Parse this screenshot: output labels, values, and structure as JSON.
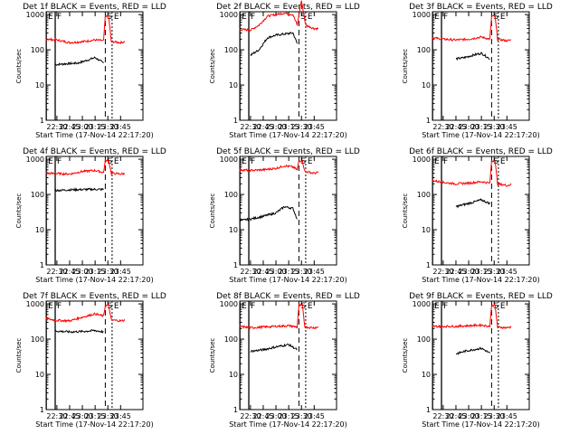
{
  "figure": {
    "xaxis_label": "Start Time (17-Nov-14 22:17:20)",
    "yaxis_label": "Counts/sec",
    "x_ticks": [
      "22:30",
      "22:45",
      "23:00",
      "23:15",
      "23:30",
      "23:45"
    ],
    "y_ticks": [
      "1",
      "10",
      "100",
      "1000"
    ],
    "colors": {
      "events": "#000000",
      "lld": "#ff0000",
      "axes": "#000000",
      "background": "#ffffff"
    }
  },
  "chart_data": [
    {
      "type": "line",
      "title": "Det 1f BLACK = Events, RED = LLD",
      "xlabel": "Start Time (17-Nov-14 22:17:20)",
      "ylabel": "Counts/sec",
      "xlim": [
        "22:17:20",
        "23:55"
      ],
      "ylim": [
        1,
        1200
      ],
      "yscale": "log",
      "markers": [
        {
          "label": "E",
          "time": "22:17:30",
          "style": "solid"
        },
        {
          "label": "F",
          "time": "22:28",
          "style": "solid"
        },
        {
          "label": "S",
          "time": "23:27",
          "style": "dashed"
        },
        {
          "label": "E",
          "time": "23:35",
          "style": "dotted"
        }
      ],
      "series": [
        {
          "name": "Events",
          "color": "#000000",
          "x": [
            "22:28",
            "22:40",
            "22:55",
            "23:05",
            "23:15",
            "23:25"
          ],
          "values": [
            38,
            40,
            42,
            50,
            60,
            42
          ]
        },
        {
          "name": "LLD",
          "color": "#ff0000",
          "x": [
            "22:17",
            "22:30",
            "22:45",
            "23:00",
            "23:15",
            "23:25",
            "23:27",
            "23:31",
            "23:34",
            "23:45",
            "23:50"
          ],
          "values": [
            200,
            190,
            160,
            170,
            190,
            180,
            900,
            900,
            170,
            160,
            170
          ]
        }
      ]
    },
    {
      "type": "line",
      "title": "Det 2f BLACK = Events, RED = LLD",
      "xlabel": "Start Time (17-Nov-14 22:17:20)",
      "ylabel": "Counts/sec",
      "xlim": [
        "22:17:20",
        "23:55"
      ],
      "ylim": [
        1,
        1200
      ],
      "yscale": "log",
      "markers": [
        {
          "label": "E",
          "time": "22:17:30",
          "style": "solid"
        },
        {
          "label": "F",
          "time": "22:28",
          "style": "solid"
        },
        {
          "label": "S",
          "time": "23:27",
          "style": "dashed"
        },
        {
          "label": "E",
          "time": "23:35",
          "style": "dotted"
        }
      ],
      "series": [
        {
          "name": "Events",
          "color": "#000000",
          "x": [
            "22:30",
            "22:40",
            "22:50",
            "23:00",
            "23:10",
            "23:20",
            "23:25"
          ],
          "values": [
            70,
            100,
            220,
            260,
            280,
            300,
            150
          ]
        },
        {
          "name": "LLD",
          "color": "#ff0000",
          "x": [
            "22:17",
            "22:30",
            "22:40",
            "22:50",
            "23:00",
            "23:10",
            "23:20",
            "23:25",
            "23:30",
            "23:35",
            "23:45",
            "23:50"
          ],
          "values": [
            380,
            360,
            500,
            900,
            1000,
            1100,
            1000,
            500,
            2500,
            500,
            400,
            400
          ]
        }
      ]
    },
    {
      "type": "line",
      "title": "Det 3f BLACK = Events, RED = LLD",
      "xlabel": "Start Time (17-Nov-14 22:17:20)",
      "ylabel": "Counts/sec",
      "xlim": [
        "22:17:20",
        "23:55"
      ],
      "ylim": [
        1,
        1200
      ],
      "yscale": "log",
      "markers": [
        {
          "label": "E",
          "time": "22:17:30",
          "style": "solid"
        },
        {
          "label": "F",
          "time": "22:28",
          "style": "solid"
        },
        {
          "label": "S",
          "time": "23:27",
          "style": "dashed"
        },
        {
          "label": "E",
          "time": "23:35",
          "style": "dotted"
        }
      ],
      "series": [
        {
          "name": "Events",
          "color": "#000000",
          "x": [
            "22:45",
            "22:55",
            "23:05",
            "23:15",
            "23:25"
          ],
          "values": [
            55,
            60,
            70,
            80,
            55
          ]
        },
        {
          "name": "LLD",
          "color": "#ff0000",
          "x": [
            "22:17",
            "22:30",
            "22:45",
            "23:00",
            "23:15",
            "23:25",
            "23:27",
            "23:31",
            "23:34",
            "23:45",
            "23:50"
          ],
          "values": [
            220,
            200,
            190,
            200,
            230,
            200,
            900,
            900,
            200,
            180,
            190
          ]
        }
      ]
    },
    {
      "type": "line",
      "title": "Det 4f BLACK = Events, RED = LLD",
      "xlabel": "Start Time (17-Nov-14 22:17:20)",
      "ylabel": "Counts/sec",
      "xlim": [
        "22:17:20",
        "23:55"
      ],
      "ylim": [
        1,
        1200
      ],
      "yscale": "log",
      "markers": [
        {
          "label": "E",
          "time": "22:17:30",
          "style": "solid"
        },
        {
          "label": "F",
          "time": "22:28",
          "style": "solid"
        },
        {
          "label": "S",
          "time": "23:27",
          "style": "dashed"
        },
        {
          "label": "E",
          "time": "23:35",
          "style": "dotted"
        }
      ],
      "series": [
        {
          "name": "Events",
          "color": "#000000",
          "x": [
            "22:28",
            "22:45",
            "23:00",
            "23:15",
            "23:25"
          ],
          "values": [
            130,
            135,
            138,
            140,
            138
          ]
        },
        {
          "name": "LLD",
          "color": "#ff0000",
          "x": [
            "22:17",
            "22:30",
            "22:45",
            "23:00",
            "23:15",
            "23:25",
            "23:27",
            "23:31",
            "23:34",
            "23:45",
            "23:50"
          ],
          "values": [
            400,
            390,
            380,
            450,
            480,
            420,
            900,
            900,
            400,
            380,
            390
          ]
        }
      ]
    },
    {
      "type": "line",
      "title": "Det 5f BLACK = Events, RED = LLD",
      "xlabel": "Start Time (17-Nov-14 22:17:20)",
      "ylabel": "Counts/sec",
      "xlim": [
        "22:17:20",
        "23:55"
      ],
      "ylim": [
        1,
        1200
      ],
      "yscale": "log",
      "markers": [
        {
          "label": "E",
          "time": "22:17:30",
          "style": "solid"
        },
        {
          "label": "F",
          "time": "22:28",
          "style": "solid"
        },
        {
          "label": "S",
          "time": "23:27",
          "style": "dashed"
        },
        {
          "label": "E",
          "time": "23:35",
          "style": "dotted"
        }
      ],
      "series": [
        {
          "name": "Events",
          "color": "#000000",
          "x": [
            "22:17",
            "22:30",
            "22:45",
            "23:00",
            "23:10",
            "23:20",
            "23:25"
          ],
          "values": [
            18,
            20,
            24,
            30,
            45,
            40,
            20
          ]
        },
        {
          "name": "LLD",
          "color": "#ff0000",
          "x": [
            "22:17",
            "22:30",
            "22:45",
            "23:00",
            "23:10",
            "23:20",
            "23:25",
            "23:27",
            "23:31",
            "23:34",
            "23:45",
            "23:50"
          ],
          "values": [
            500,
            480,
            500,
            550,
            650,
            600,
            500,
            900,
            900,
            450,
            400,
            420
          ]
        }
      ]
    },
    {
      "type": "line",
      "title": "Det 6f BLACK = Events, RED = LLD",
      "xlabel": "Start Time (17-Nov-14 22:17:20)",
      "ylabel": "Counts/sec",
      "xlim": [
        "22:17:20",
        "23:55"
      ],
      "ylim": [
        1,
        1200
      ],
      "yscale": "log",
      "markers": [
        {
          "label": "E",
          "time": "22:17:30",
          "style": "solid"
        },
        {
          "label": "F",
          "time": "22:28",
          "style": "solid"
        },
        {
          "label": "S",
          "time": "23:27",
          "style": "dashed"
        },
        {
          "label": "E",
          "time": "23:35",
          "style": "dotted"
        }
      ],
      "series": [
        {
          "name": "Events",
          "color": "#000000",
          "x": [
            "22:45",
            "22:55",
            "23:05",
            "23:15",
            "23:25"
          ],
          "values": [
            45,
            52,
            60,
            70,
            55
          ]
        },
        {
          "name": "LLD",
          "color": "#ff0000",
          "x": [
            "22:17",
            "22:30",
            "22:45",
            "23:00",
            "23:15",
            "23:25",
            "23:27",
            "23:31",
            "23:34",
            "23:45",
            "23:50"
          ],
          "values": [
            250,
            220,
            200,
            210,
            230,
            210,
            900,
            900,
            200,
            180,
            190
          ]
        }
      ]
    },
    {
      "type": "line",
      "title": "Det 7f BLACK = Events, RED = LLD",
      "xlabel": "Start Time (17-Nov-14 22:17:20)",
      "ylabel": "Counts/sec",
      "xlim": [
        "22:17:20",
        "23:55"
      ],
      "ylim": [
        1,
        1200
      ],
      "yscale": "log",
      "markers": [
        {
          "label": "E",
          "time": "22:17:30",
          "style": "solid"
        },
        {
          "label": "F",
          "time": "22:28",
          "style": "solid"
        },
        {
          "label": "S",
          "time": "23:27",
          "style": "dashed"
        },
        {
          "label": "E",
          "time": "23:35",
          "style": "dotted"
        }
      ],
      "series": [
        {
          "name": "Events",
          "color": "#000000",
          "x": [
            "22:28",
            "22:45",
            "23:00",
            "23:15",
            "23:25"
          ],
          "values": [
            170,
            160,
            165,
            175,
            160
          ]
        },
        {
          "name": "LLD",
          "color": "#ff0000",
          "x": [
            "22:17",
            "22:30",
            "22:45",
            "23:00",
            "23:15",
            "23:25",
            "23:27",
            "23:31",
            "23:34",
            "23:45",
            "23:50"
          ],
          "values": [
            380,
            340,
            330,
            420,
            520,
            450,
            900,
            900,
            350,
            330,
            340
          ]
        }
      ]
    },
    {
      "type": "line",
      "title": "Det 8f BLACK = Events, RED = LLD",
      "xlabel": "Start Time (17-Nov-14 22:17:20)",
      "ylabel": "Counts/sec",
      "xlim": [
        "22:17:20",
        "23:55"
      ],
      "ylim": [
        1,
        1200
      ],
      "yscale": "log",
      "markers": [
        {
          "label": "E",
          "time": "22:17:30",
          "style": "solid"
        },
        {
          "label": "F",
          "time": "22:28",
          "style": "solid"
        },
        {
          "label": "S",
          "time": "23:27",
          "style": "dashed"
        },
        {
          "label": "E",
          "time": "23:35",
          "style": "dotted"
        }
      ],
      "series": [
        {
          "name": "Events",
          "color": "#000000",
          "x": [
            "22:30",
            "22:45",
            "23:00",
            "23:15",
            "23:25"
          ],
          "values": [
            45,
            50,
            60,
            70,
            50
          ]
        },
        {
          "name": "LLD",
          "color": "#ff0000",
          "x": [
            "22:17",
            "22:30",
            "22:45",
            "23:00",
            "23:15",
            "23:25",
            "23:27",
            "23:31",
            "23:34",
            "23:45",
            "23:50"
          ],
          "values": [
            230,
            210,
            220,
            230,
            240,
            220,
            900,
            900,
            220,
            210,
            220
          ]
        }
      ]
    },
    {
      "type": "line",
      "title": "Det 9f BLACK = Events, RED = LLD",
      "xlabel": "Start Time (17-Nov-14 22:17:20)",
      "ylabel": "Counts/sec",
      "xlim": [
        "22:17:20",
        "23:55"
      ],
      "ylim": [
        1,
        1200
      ],
      "yscale": "log",
      "markers": [
        {
          "label": "E",
          "time": "22:17:30",
          "style": "solid"
        },
        {
          "label": "F",
          "time": "22:28",
          "style": "solid"
        },
        {
          "label": "S",
          "time": "23:27",
          "style": "dashed"
        },
        {
          "label": "E",
          "time": "23:35",
          "style": "dotted"
        }
      ],
      "series": [
        {
          "name": "Events",
          "color": "#000000",
          "x": [
            "22:45",
            "22:55",
            "23:05",
            "23:15",
            "23:25"
          ],
          "values": [
            38,
            45,
            50,
            55,
            40
          ]
        },
        {
          "name": "LLD",
          "color": "#ff0000",
          "x": [
            "22:17",
            "22:30",
            "22:45",
            "23:00",
            "23:15",
            "23:25",
            "23:27",
            "23:31",
            "23:34",
            "23:45",
            "23:50"
          ],
          "values": [
            230,
            230,
            230,
            240,
            250,
            230,
            900,
            900,
            220,
            210,
            220
          ]
        }
      ]
    }
  ]
}
